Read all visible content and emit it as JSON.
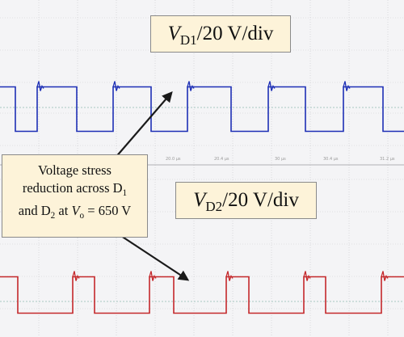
{
  "chart_data": [
    {
      "type": "line",
      "channel_label": {
        "symbol": "V",
        "subscript": "D1",
        "scale": "/20 V/div"
      },
      "color": "#1d2fb5",
      "series": [
        {
          "values_description_only_in_script": true,
          "x": [
            0,
            19,
            19,
            46,
            46,
            95,
            95,
            140,
            140,
            187,
            187,
            232,
            232,
            286,
            286,
            332,
            332,
            378,
            378,
            425,
            425,
            474,
            474,
            500
          ],
          "y": [
            50,
            50,
            -10,
            -10,
            50,
            50,
            -10,
            -10,
            50,
            50,
            -10,
            -10,
            50,
            50,
            -10,
            -10,
            50,
            50,
            -10,
            -10,
            50,
            50,
            -10,
            -10
          ]
        }
      ],
      "xlim": [
        0,
        500
      ],
      "ylim": [
        -40,
        80
      ]
    },
    {
      "type": "line",
      "channel_label": {
        "symbol": "V",
        "subscript": "D2",
        "scale": "/20 V/div"
      },
      "color": "#c4282b",
      "series": [
        {
          "x": [
            0,
            22,
            22,
            90,
            90,
            117,
            117,
            185,
            185,
            215,
            215,
            280,
            280,
            308,
            308,
            376,
            376,
            403,
            403,
            472,
            472,
            500
          ],
          "y": [
            50,
            50,
            -10,
            -10,
            50,
            50,
            -10,
            -10,
            50,
            50,
            -10,
            -10,
            50,
            50,
            -10,
            -10,
            50,
            50,
            -10,
            -10,
            50,
            50
          ]
        }
      ],
      "xlim": [
        0,
        500
      ],
      "ylim": [
        -40,
        80
      ]
    }
  ],
  "x_ticks": [
    "20.0 μs",
    "20.4 μs",
    "30 μs",
    "30.4 μs",
    "31.2 μs"
  ],
  "annotation": {
    "line1": "Voltage stress",
    "line2_pre": "reduction across D",
    "line2_sub": "1",
    "line3_pre": "and D",
    "line3_sub": "2",
    "line3_mid": " at ",
    "line3_var": "V",
    "line3_var_sub": "o",
    "line3_post": " = 650 V"
  },
  "colors": {
    "background": "#f4f4f6",
    "grid": "#c9c9cc",
    "grid_dashed": "#8fb8b0",
    "arrow": "#1a1a1a",
    "box_fill": "#fdf3d9"
  }
}
